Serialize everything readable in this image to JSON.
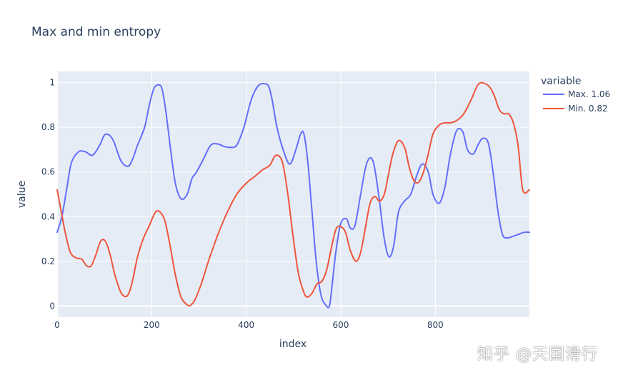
{
  "chart_data": {
    "type": "line",
    "title": "Max and min entropy",
    "xlabel": "index",
    "ylabel": "value",
    "xlim": [
      0,
      999
    ],
    "ylim": [
      -0.05,
      1.05
    ],
    "xticks": [
      0,
      200,
      400,
      600,
      800
    ],
    "yticks": [
      0,
      0.2,
      0.4,
      0.6,
      0.8,
      1
    ],
    "grid": true,
    "legend_title": "variable",
    "legend_position": "right",
    "series": [
      {
        "name": "Max. 1.06",
        "color": "#636efa",
        "x": [
          0,
          10,
          20,
          30,
          45,
          60,
          75,
          90,
          100,
          110,
          120,
          135,
          150,
          160,
          170,
          185,
          195,
          205,
          215,
          222,
          230,
          240,
          250,
          262,
          275,
          285,
          295,
          310,
          325,
          340,
          352,
          365,
          380,
          395,
          410,
          425,
          440,
          448,
          455,
          465,
          478,
          492,
          505,
          515,
          522,
          530,
          538,
          548,
          558,
          568,
          576,
          582,
          590,
          600,
          612,
          620,
          630,
          642,
          655,
          668,
          680,
          692,
          702,
          712,
          722,
          735,
          748,
          760,
          772,
          785,
          795,
          808,
          820,
          832,
          845,
          858,
          868,
          880,
          890,
          900,
          912,
          922,
          932,
          942,
          952,
          962,
          975,
          988,
          999
        ],
        "y": [
          0.33,
          0.4,
          0.52,
          0.64,
          0.69,
          0.69,
          0.675,
          0.72,
          0.765,
          0.765,
          0.735,
          0.65,
          0.625,
          0.66,
          0.72,
          0.8,
          0.9,
          0.975,
          0.99,
          0.97,
          0.87,
          0.7,
          0.55,
          0.48,
          0.5,
          0.57,
          0.6,
          0.66,
          0.72,
          0.725,
          0.715,
          0.71,
          0.72,
          0.8,
          0.92,
          0.985,
          0.995,
          0.98,
          0.92,
          0.8,
          0.7,
          0.635,
          0.7,
          0.77,
          0.77,
          0.65,
          0.45,
          0.2,
          0.05,
          0.005,
          0.0,
          0.1,
          0.25,
          0.37,
          0.39,
          0.35,
          0.36,
          0.5,
          0.64,
          0.65,
          0.5,
          0.3,
          0.22,
          0.27,
          0.42,
          0.47,
          0.5,
          0.58,
          0.635,
          0.6,
          0.5,
          0.46,
          0.53,
          0.68,
          0.785,
          0.78,
          0.7,
          0.68,
          0.72,
          0.75,
          0.73,
          0.6,
          0.43,
          0.32,
          0.305,
          0.31,
          0.32,
          0.33,
          0.33
        ]
      },
      {
        "name": "Min. 0.82",
        "color": "#ef553b",
        "x": [
          0,
          8,
          18,
          28,
          40,
          52,
          62,
          72,
          82,
          92,
          102,
          112,
          122,
          135,
          148,
          158,
          170,
          182,
          195,
          208,
          218,
          228,
          238,
          250,
          262,
          275,
          282,
          292,
          305,
          320,
          340,
          360,
          380,
          400,
          418,
          435,
          450,
          460,
          470,
          478,
          488,
          498,
          510,
          522,
          530,
          540,
          550,
          560,
          570,
          580,
          590,
          600,
          610,
          620,
          632,
          642,
          652,
          662,
          672,
          682,
          692,
          700,
          710,
          722,
          735,
          745,
          755,
          765,
          775,
          785,
          795,
          808,
          820,
          832,
          845,
          860,
          875,
          890,
          902,
          915,
          925,
          935,
          945,
          955,
          965,
          975,
          985,
          999
        ],
        "y": [
          0.52,
          0.43,
          0.32,
          0.24,
          0.215,
          0.21,
          0.18,
          0.18,
          0.23,
          0.29,
          0.29,
          0.23,
          0.14,
          0.06,
          0.045,
          0.1,
          0.22,
          0.3,
          0.36,
          0.42,
          0.42,
          0.38,
          0.28,
          0.14,
          0.04,
          0.005,
          0.003,
          0.03,
          0.1,
          0.2,
          0.32,
          0.42,
          0.5,
          0.55,
          0.58,
          0.61,
          0.63,
          0.67,
          0.67,
          0.63,
          0.5,
          0.33,
          0.15,
          0.06,
          0.04,
          0.06,
          0.1,
          0.11,
          0.16,
          0.26,
          0.345,
          0.355,
          0.33,
          0.25,
          0.2,
          0.24,
          0.35,
          0.46,
          0.49,
          0.47,
          0.5,
          0.58,
          0.68,
          0.74,
          0.71,
          0.62,
          0.56,
          0.555,
          0.6,
          0.68,
          0.77,
          0.81,
          0.82,
          0.82,
          0.83,
          0.86,
          0.92,
          0.99,
          0.998,
          0.98,
          0.94,
          0.88,
          0.86,
          0.86,
          0.82,
          0.72,
          0.52,
          0.52
        ]
      }
    ]
  },
  "watermark": "知乎 @天国滑行"
}
